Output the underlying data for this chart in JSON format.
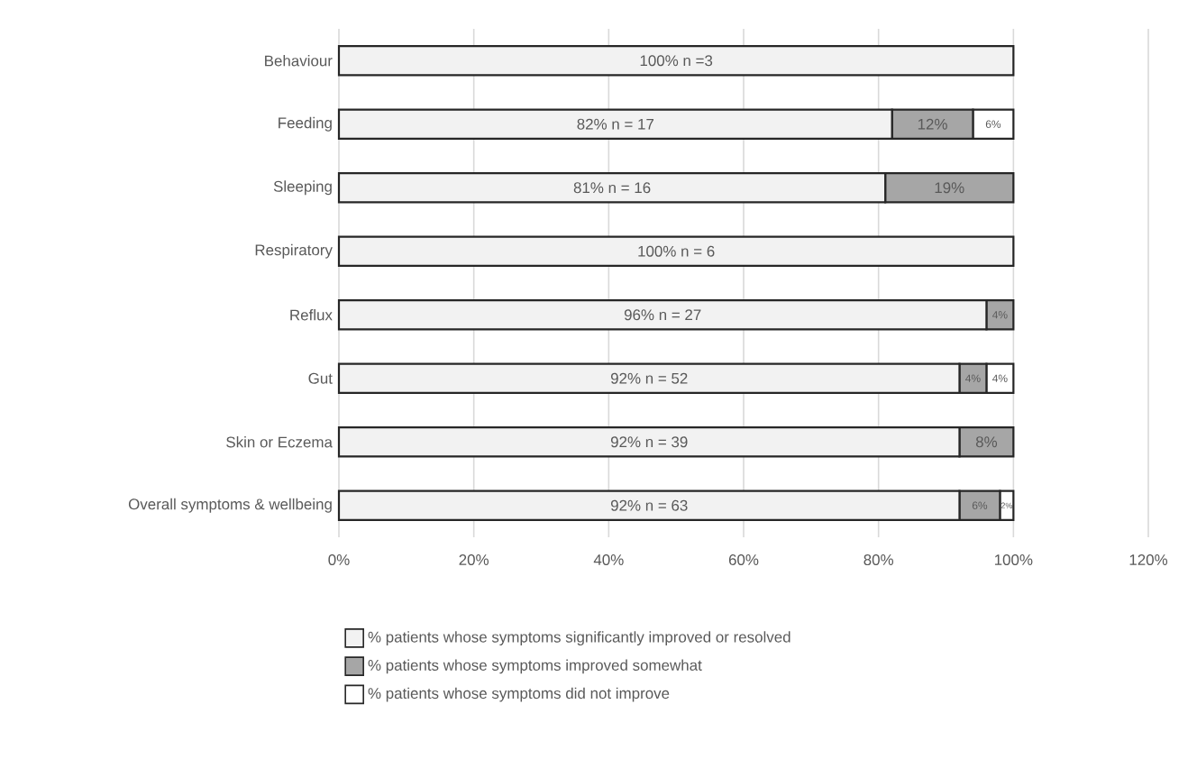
{
  "chart_data": {
    "type": "bar",
    "orientation": "horizontal",
    "stacked": true,
    "categories": [
      "Behaviour",
      "Feeding",
      "Sleeping",
      "Respiratory",
      "Reflux",
      "Gut",
      "Skin or Eczema",
      "Overall symptoms & wellbeing"
    ],
    "series": [
      {
        "name": "% patients whose symptoms significantly improved or resolved",
        "color": "#f2f2f2",
        "values": [
          100,
          82,
          81,
          100,
          96,
          92,
          92,
          92
        ],
        "value_labels": [
          "100% n =3",
          "82% n = 17",
          "81% n = 16",
          "100% n = 6",
          "96% n = 27",
          "92% n = 52",
          "92% n = 39",
          "92% n = 63"
        ]
      },
      {
        "name": "% patients whose symptoms improved somewhat",
        "color": "#a6a6a6",
        "values": [
          null,
          12,
          19,
          null,
          4,
          4,
          8,
          6
        ],
        "value_labels": [
          null,
          "12%",
          "19%",
          null,
          "4%",
          "4%",
          "8%",
          "6%"
        ]
      },
      {
        "name": "% patients whose symptoms did not improve",
        "color": "#ffffff",
        "values": [
          null,
          6,
          null,
          null,
          null,
          4,
          null,
          2
        ],
        "value_labels": [
          null,
          "6%",
          null,
          null,
          null,
          "4%",
          null,
          "2%"
        ]
      }
    ],
    "xlim": [
      0,
      120
    ],
    "xticks": [
      {
        "value": 0,
        "label": "0%"
      },
      {
        "value": 20,
        "label": "20%"
      },
      {
        "value": 40,
        "label": "40%"
      },
      {
        "value": 60,
        "label": "60%"
      },
      {
        "value": 80,
        "label": "80%"
      },
      {
        "value": 100,
        "label": "100%"
      },
      {
        "value": 120,
        "label": "120%"
      }
    ],
    "grid": "x",
    "legend": "bottom"
  }
}
